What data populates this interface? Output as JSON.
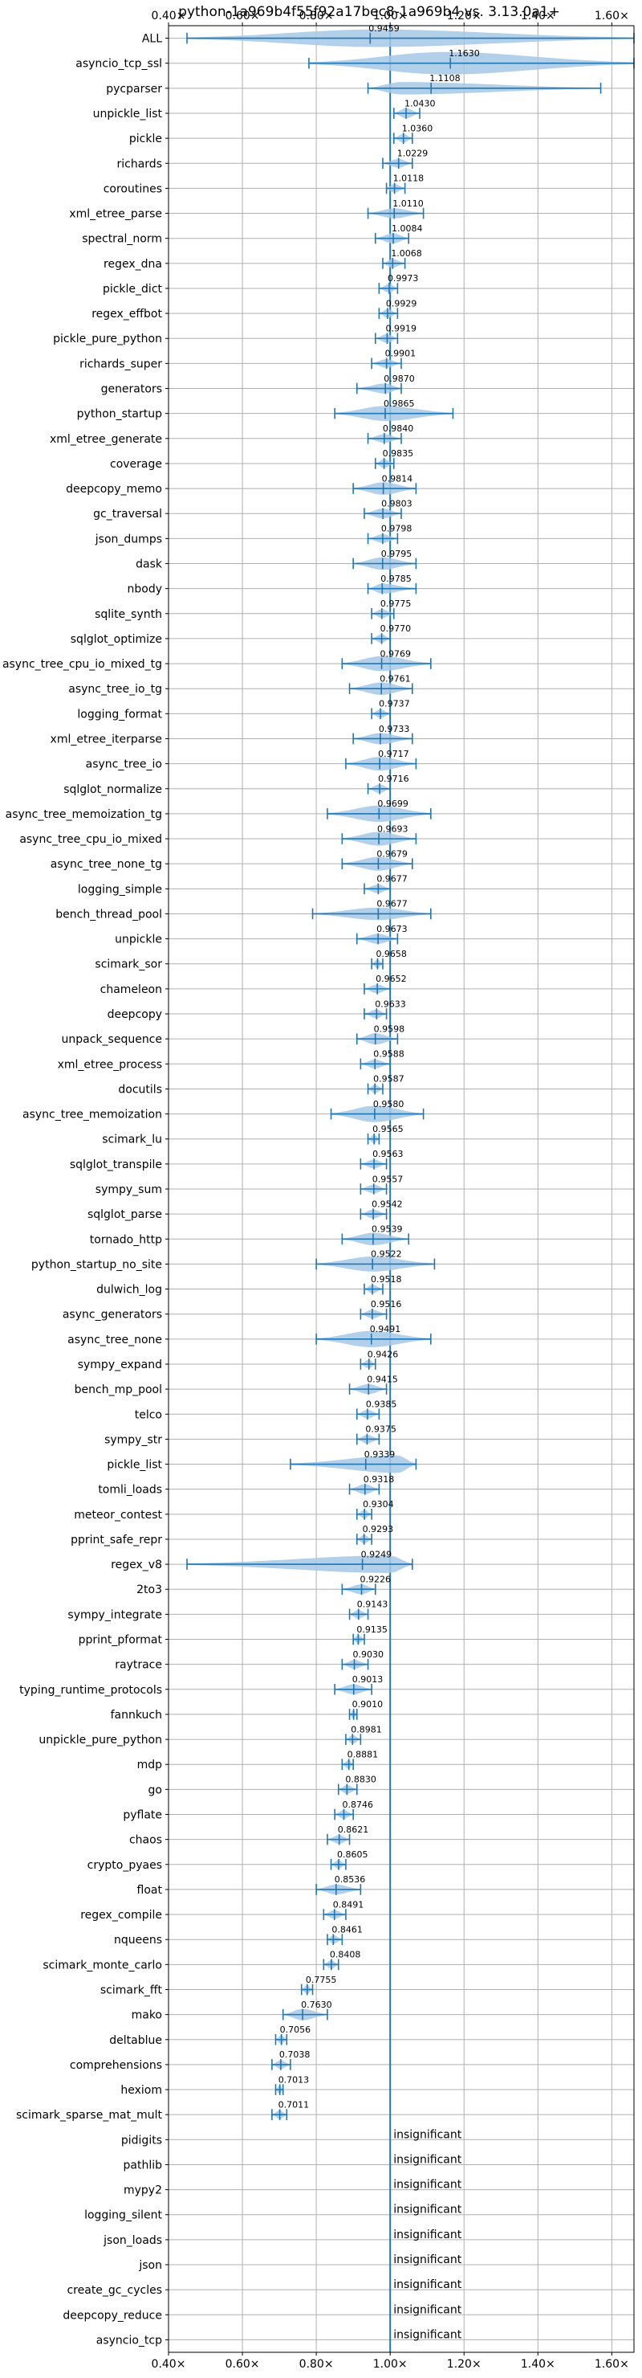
{
  "chart_data": {
    "type": "violin",
    "title": "python-1a969b4f55f92a17bec8-1a969b4 vs. 3.13.0a1+",
    "xlabel": "",
    "ylabel": "",
    "xlim": [
      0.4,
      1.66
    ],
    "x_ticks": [
      {
        "value": 0.4,
        "label": "0.40×"
      },
      {
        "value": 0.6,
        "label": "0.60×"
      },
      {
        "value": 0.8,
        "label": "0.80×"
      },
      {
        "value": 1.0,
        "label": "1.00×"
      },
      {
        "value": 1.2,
        "label": "1.20×"
      },
      {
        "value": 1.4,
        "label": "1.40×"
      },
      {
        "value": 1.6,
        "label": "1.60×"
      }
    ],
    "reference_line": 1.0,
    "grid": true,
    "colors": {
      "accent": "#1f77b4",
      "violin_fill": "#a6c8e6",
      "grid": "#b0b0b0"
    },
    "insignificant_text": "insignificant",
    "rows": [
      {
        "name": "ALL",
        "label": "0.9459",
        "center": 0.96,
        "lo": 0.45,
        "hi": 1.66,
        "w": 0.7,
        "mean": 0.9459
      },
      {
        "name": "asyncio_tcp_ssl",
        "label": "1.1630",
        "center": 1.15,
        "lo": 0.78,
        "hi": 1.66,
        "w": 0.9,
        "mean": 1.163
      },
      {
        "name": "pycparser",
        "label": "1.1108",
        "center": 1.03,
        "lo": 0.94,
        "hi": 1.57,
        "w": 0.5,
        "mean": 1.1108
      },
      {
        "name": "unpickle_list",
        "label": "1.0430",
        "center": 1.043,
        "lo": 1.01,
        "hi": 1.08,
        "w": 0.4,
        "mean": 1.043
      },
      {
        "name": "pickle",
        "label": "1.0360",
        "center": 1.036,
        "lo": 1.01,
        "hi": 1.06,
        "w": 0.35,
        "mean": 1.036
      },
      {
        "name": "richards",
        "label": "1.0229",
        "center": 1.0229,
        "lo": 0.98,
        "hi": 1.06,
        "w": 0.35,
        "mean": 1.0229
      },
      {
        "name": "coroutines",
        "label": "1.0118",
        "center": 1.0118,
        "lo": 0.99,
        "hi": 1.04,
        "w": 0.35,
        "mean": 1.0118
      },
      {
        "name": "xml_etree_parse",
        "label": "1.0110",
        "center": 1.011,
        "lo": 0.94,
        "hi": 1.09,
        "w": 0.4,
        "mean": 1.011
      },
      {
        "name": "spectral_norm",
        "label": "1.0084",
        "center": 1.0084,
        "lo": 0.96,
        "hi": 1.05,
        "w": 0.4,
        "mean": 1.0084
      },
      {
        "name": "regex_dna",
        "label": "1.0068",
        "center": 1.0068,
        "lo": 0.98,
        "hi": 1.04,
        "w": 0.35,
        "mean": 1.0068
      },
      {
        "name": "pickle_dict",
        "label": "0.9973",
        "center": 0.9973,
        "lo": 0.97,
        "hi": 1.02,
        "w": 0.35,
        "mean": 0.9973
      },
      {
        "name": "regex_effbot",
        "label": "0.9929",
        "center": 0.9929,
        "lo": 0.97,
        "hi": 1.02,
        "w": 0.35,
        "mean": 0.9929
      },
      {
        "name": "pickle_pure_python",
        "label": "0.9919",
        "center": 0.9919,
        "lo": 0.96,
        "hi": 1.02,
        "w": 0.35,
        "mean": 0.9919
      },
      {
        "name": "richards_super",
        "label": "0.9901",
        "center": 0.9901,
        "lo": 0.95,
        "hi": 1.03,
        "w": 0.35,
        "mean": 0.9901
      },
      {
        "name": "generators",
        "label": "0.9870",
        "center": 0.987,
        "lo": 0.91,
        "hi": 1.03,
        "w": 0.4,
        "mean": 0.987
      },
      {
        "name": "python_startup",
        "label": "0.9865",
        "center": 0.9865,
        "lo": 0.85,
        "hi": 1.17,
        "w": 0.6,
        "mean": 0.9865
      },
      {
        "name": "xml_etree_generate",
        "label": "0.9840",
        "center": 0.984,
        "lo": 0.94,
        "hi": 1.03,
        "w": 0.35,
        "mean": 0.984
      },
      {
        "name": "coverage",
        "label": "0.9835",
        "center": 0.9835,
        "lo": 0.96,
        "hi": 1.01,
        "w": 0.35,
        "mean": 0.9835
      },
      {
        "name": "deepcopy_memo",
        "label": "0.9814",
        "center": 0.9814,
        "lo": 0.9,
        "hi": 1.07,
        "w": 0.5,
        "mean": 0.9814
      },
      {
        "name": "gc_traversal",
        "label": "0.9803",
        "center": 0.9803,
        "lo": 0.93,
        "hi": 1.03,
        "w": 0.4,
        "mean": 0.9803
      },
      {
        "name": "json_dumps",
        "label": "0.9798",
        "center": 0.9798,
        "lo": 0.94,
        "hi": 1.02,
        "w": 0.35,
        "mean": 0.9798
      },
      {
        "name": "dask",
        "label": "0.9795",
        "center": 0.9795,
        "lo": 0.9,
        "hi": 1.07,
        "w": 0.5,
        "mean": 0.9795
      },
      {
        "name": "nbody",
        "label": "0.9785",
        "center": 0.9785,
        "lo": 0.94,
        "hi": 1.07,
        "w": 0.4,
        "mean": 0.9785
      },
      {
        "name": "sqlite_synth",
        "label": "0.9775",
        "center": 0.9775,
        "lo": 0.95,
        "hi": 1.01,
        "w": 0.35,
        "mean": 0.9775
      },
      {
        "name": "sqlglot_optimize",
        "label": "0.9770",
        "center": 0.977,
        "lo": 0.95,
        "hi": 1.0,
        "w": 0.35,
        "mean": 0.977
      },
      {
        "name": "async_tree_cpu_io_mixed_tg",
        "label": "0.9769",
        "center": 0.9769,
        "lo": 0.87,
        "hi": 1.11,
        "w": 0.6,
        "mean": 0.9769
      },
      {
        "name": "async_tree_io_tg",
        "label": "0.9761",
        "center": 0.9761,
        "lo": 0.89,
        "hi": 1.06,
        "w": 0.5,
        "mean": 0.9761
      },
      {
        "name": "logging_format",
        "label": "0.9737",
        "center": 0.9737,
        "lo": 0.95,
        "hi": 1.0,
        "w": 0.35,
        "mean": 0.9737
      },
      {
        "name": "xml_etree_iterparse",
        "label": "0.9733",
        "center": 0.9733,
        "lo": 0.9,
        "hi": 1.06,
        "w": 0.45,
        "mean": 0.9733
      },
      {
        "name": "async_tree_io",
        "label": "0.9717",
        "center": 0.9717,
        "lo": 0.88,
        "hi": 1.07,
        "w": 0.55,
        "mean": 0.9717
      },
      {
        "name": "sqlglot_normalize",
        "label": "0.9716",
        "center": 0.9716,
        "lo": 0.94,
        "hi": 1.0,
        "w": 0.35,
        "mean": 0.9716
      },
      {
        "name": "async_tree_memoization_tg",
        "label": "0.9699",
        "center": 0.9699,
        "lo": 0.83,
        "hi": 1.11,
        "w": 0.65,
        "mean": 0.9699
      },
      {
        "name": "async_tree_cpu_io_mixed",
        "label": "0.9693",
        "center": 0.9693,
        "lo": 0.87,
        "hi": 1.07,
        "w": 0.55,
        "mean": 0.9693
      },
      {
        "name": "async_tree_none_tg",
        "label": "0.9679",
        "center": 0.9679,
        "lo": 0.87,
        "hi": 1.06,
        "w": 0.55,
        "mean": 0.9679
      },
      {
        "name": "logging_simple",
        "label": "0.9677",
        "center": 0.9677,
        "lo": 0.93,
        "hi": 1.0,
        "w": 0.35,
        "mean": 0.9677
      },
      {
        "name": "bench_thread_pool",
        "label": "0.9677",
        "center": 0.9677,
        "lo": 0.79,
        "hi": 1.11,
        "w": 0.5,
        "mean": 0.9677
      },
      {
        "name": "unpickle",
        "label": "0.9673",
        "center": 0.9673,
        "lo": 0.91,
        "hi": 1.02,
        "w": 0.4,
        "mean": 0.9673
      },
      {
        "name": "scimark_sor",
        "label": "0.9658",
        "center": 0.9658,
        "lo": 0.95,
        "hi": 0.98,
        "w": 0.35,
        "mean": 0.9658
      },
      {
        "name": "chameleon",
        "label": "0.9652",
        "center": 0.9652,
        "lo": 0.93,
        "hi": 1.0,
        "w": 0.35,
        "mean": 0.9652
      },
      {
        "name": "deepcopy",
        "label": "0.9633",
        "center": 0.9633,
        "lo": 0.93,
        "hi": 0.99,
        "w": 0.35,
        "mean": 0.9633
      },
      {
        "name": "unpack_sequence",
        "label": "0.9598",
        "center": 0.9598,
        "lo": 0.91,
        "hi": 1.02,
        "w": 0.45,
        "mean": 0.9598
      },
      {
        "name": "xml_etree_process",
        "label": "0.9588",
        "center": 0.9588,
        "lo": 0.92,
        "hi": 1.0,
        "w": 0.35,
        "mean": 0.9588
      },
      {
        "name": "docutils",
        "label": "0.9587",
        "center": 0.9587,
        "lo": 0.94,
        "hi": 0.98,
        "w": 0.35,
        "mean": 0.9587
      },
      {
        "name": "async_tree_memoization",
        "label": "0.9580",
        "center": 0.958,
        "lo": 0.84,
        "hi": 1.09,
        "w": 0.65,
        "mean": 0.958
      },
      {
        "name": "scimark_lu",
        "label": "0.9565",
        "center": 0.9565,
        "lo": 0.94,
        "hi": 0.97,
        "w": 0.35,
        "mean": 0.9565
      },
      {
        "name": "sqlglot_transpile",
        "label": "0.9563",
        "center": 0.9563,
        "lo": 0.92,
        "hi": 0.99,
        "w": 0.35,
        "mean": 0.9563
      },
      {
        "name": "sympy_sum",
        "label": "0.9557",
        "center": 0.9557,
        "lo": 0.92,
        "hi": 0.99,
        "w": 0.35,
        "mean": 0.9557
      },
      {
        "name": "sqlglot_parse",
        "label": "0.9542",
        "center": 0.9542,
        "lo": 0.92,
        "hi": 0.99,
        "w": 0.35,
        "mean": 0.9542
      },
      {
        "name": "tornado_http",
        "label": "0.9539",
        "center": 0.9539,
        "lo": 0.87,
        "hi": 1.05,
        "w": 0.5,
        "mean": 0.9539
      },
      {
        "name": "python_startup_no_site",
        "label": "0.9522",
        "center": 0.9522,
        "lo": 0.8,
        "hi": 1.12,
        "w": 0.6,
        "mean": 0.9522
      },
      {
        "name": "dulwich_log",
        "label": "0.9518",
        "center": 0.9518,
        "lo": 0.93,
        "hi": 0.98,
        "w": 0.35,
        "mean": 0.9518
      },
      {
        "name": "async_generators",
        "label": "0.9516",
        "center": 0.9516,
        "lo": 0.92,
        "hi": 0.99,
        "w": 0.35,
        "mean": 0.9516
      },
      {
        "name": "async_tree_none",
        "label": "0.9491",
        "center": 0.9491,
        "lo": 0.8,
        "hi": 1.11,
        "w": 0.65,
        "mean": 0.9491
      },
      {
        "name": "sympy_expand",
        "label": "0.9426",
        "center": 0.9426,
        "lo": 0.92,
        "hi": 0.96,
        "w": 0.35,
        "mean": 0.9426
      },
      {
        "name": "bench_mp_pool",
        "label": "0.9415",
        "center": 0.9415,
        "lo": 0.89,
        "hi": 0.99,
        "w": 0.4,
        "mean": 0.9415
      },
      {
        "name": "telco",
        "label": "0.9385",
        "center": 0.9385,
        "lo": 0.91,
        "hi": 0.97,
        "w": 0.35,
        "mean": 0.9385
      },
      {
        "name": "sympy_str",
        "label": "0.9375",
        "center": 0.9375,
        "lo": 0.91,
        "hi": 0.97,
        "w": 0.35,
        "mean": 0.9375
      },
      {
        "name": "pickle_list",
        "label": "0.9339",
        "center": 1.02,
        "lo": 0.73,
        "hi": 1.07,
        "w": 0.7,
        "mean": 0.9339
      },
      {
        "name": "tomli_loads",
        "label": "0.9318",
        "center": 0.9318,
        "lo": 0.89,
        "hi": 0.97,
        "w": 0.4,
        "mean": 0.9318
      },
      {
        "name": "meteor_contest",
        "label": "0.9304",
        "center": 0.9304,
        "lo": 0.91,
        "hi": 0.95,
        "w": 0.35,
        "mean": 0.9304
      },
      {
        "name": "pprint_safe_repr",
        "label": "0.9293",
        "center": 0.9293,
        "lo": 0.91,
        "hi": 0.95,
        "w": 0.35,
        "mean": 0.9293
      },
      {
        "name": "regex_v8",
        "label": "0.9249",
        "center": 1.0,
        "lo": 0.45,
        "hi": 1.06,
        "w": 0.7,
        "mean": 0.9249
      },
      {
        "name": "2to3",
        "label": "0.9226",
        "center": 0.9226,
        "lo": 0.87,
        "hi": 0.96,
        "w": 0.4,
        "mean": 0.9226
      },
      {
        "name": "sympy_integrate",
        "label": "0.9143",
        "center": 0.9143,
        "lo": 0.89,
        "hi": 0.94,
        "w": 0.35,
        "mean": 0.9143
      },
      {
        "name": "pprint_pformat",
        "label": "0.9135",
        "center": 0.9135,
        "lo": 0.9,
        "hi": 0.93,
        "w": 0.35,
        "mean": 0.9135
      },
      {
        "name": "raytrace",
        "label": "0.9030",
        "center": 0.903,
        "lo": 0.87,
        "hi": 0.94,
        "w": 0.35,
        "mean": 0.903
      },
      {
        "name": "typing_runtime_protocols",
        "label": "0.9013",
        "center": 0.9013,
        "lo": 0.85,
        "hi": 0.95,
        "w": 0.4,
        "mean": 0.9013
      },
      {
        "name": "fannkuch",
        "label": "0.9010",
        "center": 0.901,
        "lo": 0.89,
        "hi": 0.91,
        "w": 0.35,
        "mean": 0.901
      },
      {
        "name": "unpickle_pure_python",
        "label": "0.8981",
        "center": 0.8981,
        "lo": 0.88,
        "hi": 0.92,
        "w": 0.35,
        "mean": 0.8981
      },
      {
        "name": "mdp",
        "label": "0.8881",
        "center": 0.8881,
        "lo": 0.87,
        "hi": 0.9,
        "w": 0.35,
        "mean": 0.8881
      },
      {
        "name": "go",
        "label": "0.8830",
        "center": 0.883,
        "lo": 0.86,
        "hi": 0.91,
        "w": 0.35,
        "mean": 0.883
      },
      {
        "name": "pyflate",
        "label": "0.8746",
        "center": 0.8746,
        "lo": 0.85,
        "hi": 0.9,
        "w": 0.35,
        "mean": 0.8746
      },
      {
        "name": "chaos",
        "label": "0.8621",
        "center": 0.8621,
        "lo": 0.83,
        "hi": 0.89,
        "w": 0.35,
        "mean": 0.8621
      },
      {
        "name": "crypto_pyaes",
        "label": "0.8605",
        "center": 0.8605,
        "lo": 0.84,
        "hi": 0.88,
        "w": 0.35,
        "mean": 0.8605
      },
      {
        "name": "float",
        "label": "0.8536",
        "center": 0.8536,
        "lo": 0.8,
        "hi": 0.92,
        "w": 0.4,
        "mean": 0.8536
      },
      {
        "name": "regex_compile",
        "label": "0.8491",
        "center": 0.8491,
        "lo": 0.82,
        "hi": 0.88,
        "w": 0.35,
        "mean": 0.8491
      },
      {
        "name": "nqueens",
        "label": "0.8461",
        "center": 0.8461,
        "lo": 0.83,
        "hi": 0.87,
        "w": 0.35,
        "mean": 0.8461
      },
      {
        "name": "scimark_monte_carlo",
        "label": "0.8408",
        "center": 0.8408,
        "lo": 0.82,
        "hi": 0.86,
        "w": 0.35,
        "mean": 0.8408
      },
      {
        "name": "scimark_fft",
        "label": "0.7755",
        "center": 0.7755,
        "lo": 0.76,
        "hi": 0.79,
        "w": 0.35,
        "mean": 0.7755
      },
      {
        "name": "mako",
        "label": "0.7630",
        "center": 0.763,
        "lo": 0.71,
        "hi": 0.83,
        "w": 0.45,
        "mean": 0.763
      },
      {
        "name": "deltablue",
        "label": "0.7056",
        "center": 0.7056,
        "lo": 0.69,
        "hi": 0.72,
        "w": 0.35,
        "mean": 0.7056
      },
      {
        "name": "comprehensions",
        "label": "0.7038",
        "center": 0.7038,
        "lo": 0.68,
        "hi": 0.73,
        "w": 0.35,
        "mean": 0.7038
      },
      {
        "name": "hexiom",
        "label": "0.7013",
        "center": 0.7013,
        "lo": 0.69,
        "hi": 0.71,
        "w": 0.35,
        "mean": 0.7013
      },
      {
        "name": "scimark_sparse_mat_mult",
        "label": "0.7011",
        "center": 0.7011,
        "lo": 0.68,
        "hi": 0.72,
        "w": 0.35,
        "mean": 0.7011
      },
      {
        "name": "pidigits",
        "insignificant": true
      },
      {
        "name": "pathlib",
        "insignificant": true
      },
      {
        "name": "mypy2",
        "insignificant": true
      },
      {
        "name": "logging_silent",
        "insignificant": true
      },
      {
        "name": "json_loads",
        "insignificant": true
      },
      {
        "name": "json",
        "insignificant": true
      },
      {
        "name": "create_gc_cycles",
        "insignificant": true
      },
      {
        "name": "deepcopy_reduce",
        "insignificant": true
      },
      {
        "name": "asyncio_tcp",
        "insignificant": true
      }
    ]
  }
}
